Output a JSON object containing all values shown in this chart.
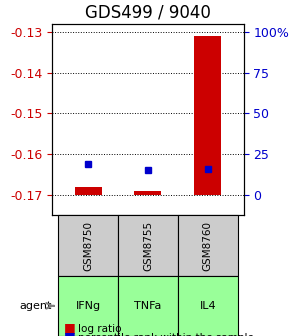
{
  "title": "GDS499 / 9040",
  "samples": [
    "IFNg",
    "TNFa",
    "IL4"
  ],
  "sample_ids": [
    "GSM8750",
    "GSM8755",
    "GSM8760"
  ],
  "log_ratios": [
    -0.168,
    -0.169,
    -0.131
  ],
  "percentile_ranks": [
    0.19,
    0.155,
    0.162
  ],
  "ylim_left": [
    -0.175,
    -0.128
  ],
  "yticks_left": [
    -0.17,
    -0.16,
    -0.15,
    -0.14,
    -0.13
  ],
  "ylim_right": [
    -0.027777,
    0.152777
  ],
  "yticks_right_vals": [
    0,
    25,
    50,
    75,
    100
  ],
  "yticks_right_labels": [
    "0",
    "25",
    "50",
    "75",
    "100%"
  ],
  "bar_width": 0.5,
  "left_axis_color": "#cc0000",
  "right_axis_color": "#0000cc",
  "log_ratio_color": "#cc0000",
  "percentile_color": "#0000cc",
  "gsm_box_color": "#cccccc",
  "agent_box_color": "#99ff99",
  "title_fontsize": 12,
  "tick_fontsize": 9,
  "legend_fontsize": 8,
  "agent_label": "agent"
}
